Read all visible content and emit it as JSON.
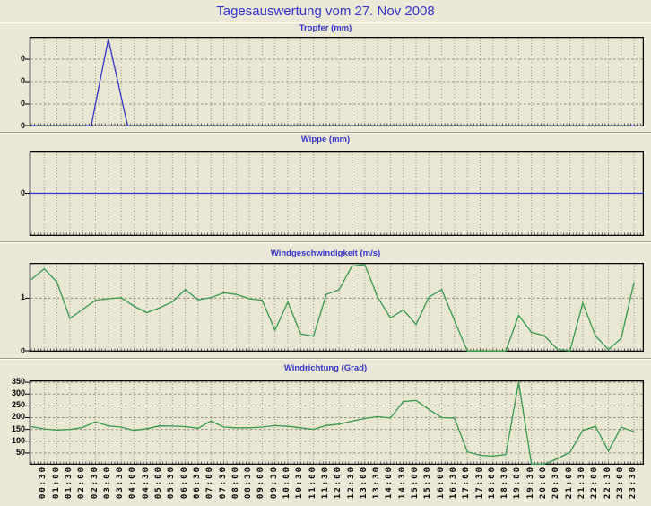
{
  "page": {
    "title": "Tagesauswertung vom 27. Nov 2008"
  },
  "x_axis": {
    "tick_labels": [
      "00:30",
      "01:00",
      "01:30",
      "02:00",
      "02:30",
      "03:00",
      "03:30",
      "04:00",
      "04:30",
      "05:00",
      "05:30",
      "06:00",
      "06:30",
      "07:00",
      "07:30",
      "08:00",
      "08:30",
      "09:00",
      "09:30",
      "10:00",
      "10:30",
      "11:00",
      "11:30",
      "12:00",
      "12:30",
      "13:00",
      "13:30",
      "14:00",
      "14:30",
      "15:00",
      "15:30",
      "16:00",
      "16:30",
      "17:00",
      "17:30",
      "18:00",
      "18:30",
      "19:00",
      "19:30",
      "20:00",
      "20:30",
      "21:00",
      "21:30",
      "22:00",
      "22:30",
      "23:00",
      "23:30"
    ]
  },
  "colors": {
    "title_blue": "#3434cc",
    "precip_line": "#3434cc",
    "wind_line": "#2e9b4a",
    "plot_background": "#e9e6d2",
    "grid": "#94927f"
  },
  "chart_data": [
    {
      "id": "tropfer",
      "type": "line",
      "title": "Tropfer (mm)",
      "line_color": "#3434cc",
      "ylim": [
        0,
        0.4
      ],
      "y_gridlines": [
        0.1,
        0.2,
        0.3
      ],
      "y_tick_labels": [
        {
          "y": 0.3,
          "label": "0"
        },
        {
          "y": 0.2,
          "label": "0"
        },
        {
          "y": 0.1,
          "label": "0"
        },
        {
          "y": 0,
          "label": "0"
        }
      ],
      "series": [
        {
          "name": "Tropfer",
          "points": [
            [
              "00:00",
              0
            ],
            [
              "02:20",
              0
            ],
            [
              "03:00",
              0.39
            ],
            [
              "03:45",
              0
            ],
            [
              "23:30",
              0
            ]
          ]
        }
      ]
    },
    {
      "id": "wippe",
      "type": "line",
      "title": "Wippe (mm)",
      "line_color": "#3434cc",
      "ylim": [
        -1,
        1
      ],
      "y_gridlines": [],
      "y_tick_labels": [
        {
          "y": 0,
          "label": "0"
        }
      ],
      "flat_line_value": 0,
      "series": [
        {
          "name": "Wippe",
          "start": "00:00",
          "interval_minutes": 30,
          "values": [
            0,
            0,
            0,
            0,
            0,
            0,
            0,
            0,
            0,
            0,
            0,
            0,
            0,
            0,
            0,
            0,
            0,
            0,
            0,
            0,
            0,
            0,
            0,
            0,
            0,
            0,
            0,
            0,
            0,
            0,
            0,
            0,
            0,
            0,
            0,
            0,
            0,
            0,
            0,
            0,
            0,
            0,
            0,
            0,
            0,
            0,
            0,
            0
          ]
        }
      ]
    },
    {
      "id": "windgeschwindigkeit",
      "type": "line",
      "title": "Windgeschwindigkeit (m/s)",
      "line_color": "#2e9b4a",
      "ylim": [
        0,
        1.66
      ],
      "y_gridlines": [
        1
      ],
      "y_tick_labels": [
        {
          "y": 1,
          "label": "1"
        },
        {
          "y": 0,
          "label": "0"
        }
      ],
      "series": [
        {
          "name": "Windgeschwindigkeit",
          "start": "00:00",
          "interval_minutes": 30,
          "values": [
            1.35,
            1.55,
            1.3,
            0.62,
            0.79,
            0.96,
            0.99,
            1.01,
            0.85,
            0.73,
            0.82,
            0.93,
            1.16,
            0.97,
            1.01,
            1.1,
            1.07,
            0.99,
            0.96,
            0.4,
            0.93,
            0.33,
            0.29,
            1.07,
            1.16,
            1.6,
            1.63,
            1.02,
            0.63,
            0.78,
            0.51,
            1.02,
            1.16,
            0.58,
            0,
            0,
            0,
            0,
            0.68,
            0.36,
            0.3,
            0.05,
            0,
            0.91,
            0.29,
            0.04,
            0.25,
            1.3
          ]
        }
      ]
    },
    {
      "id": "windrichtung",
      "type": "line",
      "title": "Windrichtung (Grad)",
      "line_color": "#2e9b4a",
      "ylim": [
        0,
        358
      ],
      "y_gridlines": [
        50,
        100,
        150,
        200,
        250,
        300,
        350
      ],
      "y_tick_labels": [
        {
          "y": 350,
          "label": "350"
        },
        {
          "y": 300,
          "label": "300"
        },
        {
          "y": 250,
          "label": "250"
        },
        {
          "y": 200,
          "label": "200"
        },
        {
          "y": 150,
          "label": "150"
        },
        {
          "y": 100,
          "label": "100"
        },
        {
          "y": 50,
          "label": "50"
        }
      ],
      "series": [
        {
          "name": "Windrichtung",
          "start": "00:00",
          "interval_minutes": 30,
          "values": [
            162,
            152,
            147,
            150,
            158,
            182,
            165,
            160,
            146,
            153,
            165,
            164,
            162,
            155,
            185,
            160,
            157,
            157,
            160,
            166,
            163,
            157,
            150,
            167,
            172,
            185,
            196,
            204,
            198,
            268,
            273,
            235,
            200,
            198,
            55,
            40,
            37,
            43,
            350,
            0,
            0,
            25,
            53,
            146,
            163,
            58,
            160,
            140
          ]
        }
      ]
    }
  ]
}
